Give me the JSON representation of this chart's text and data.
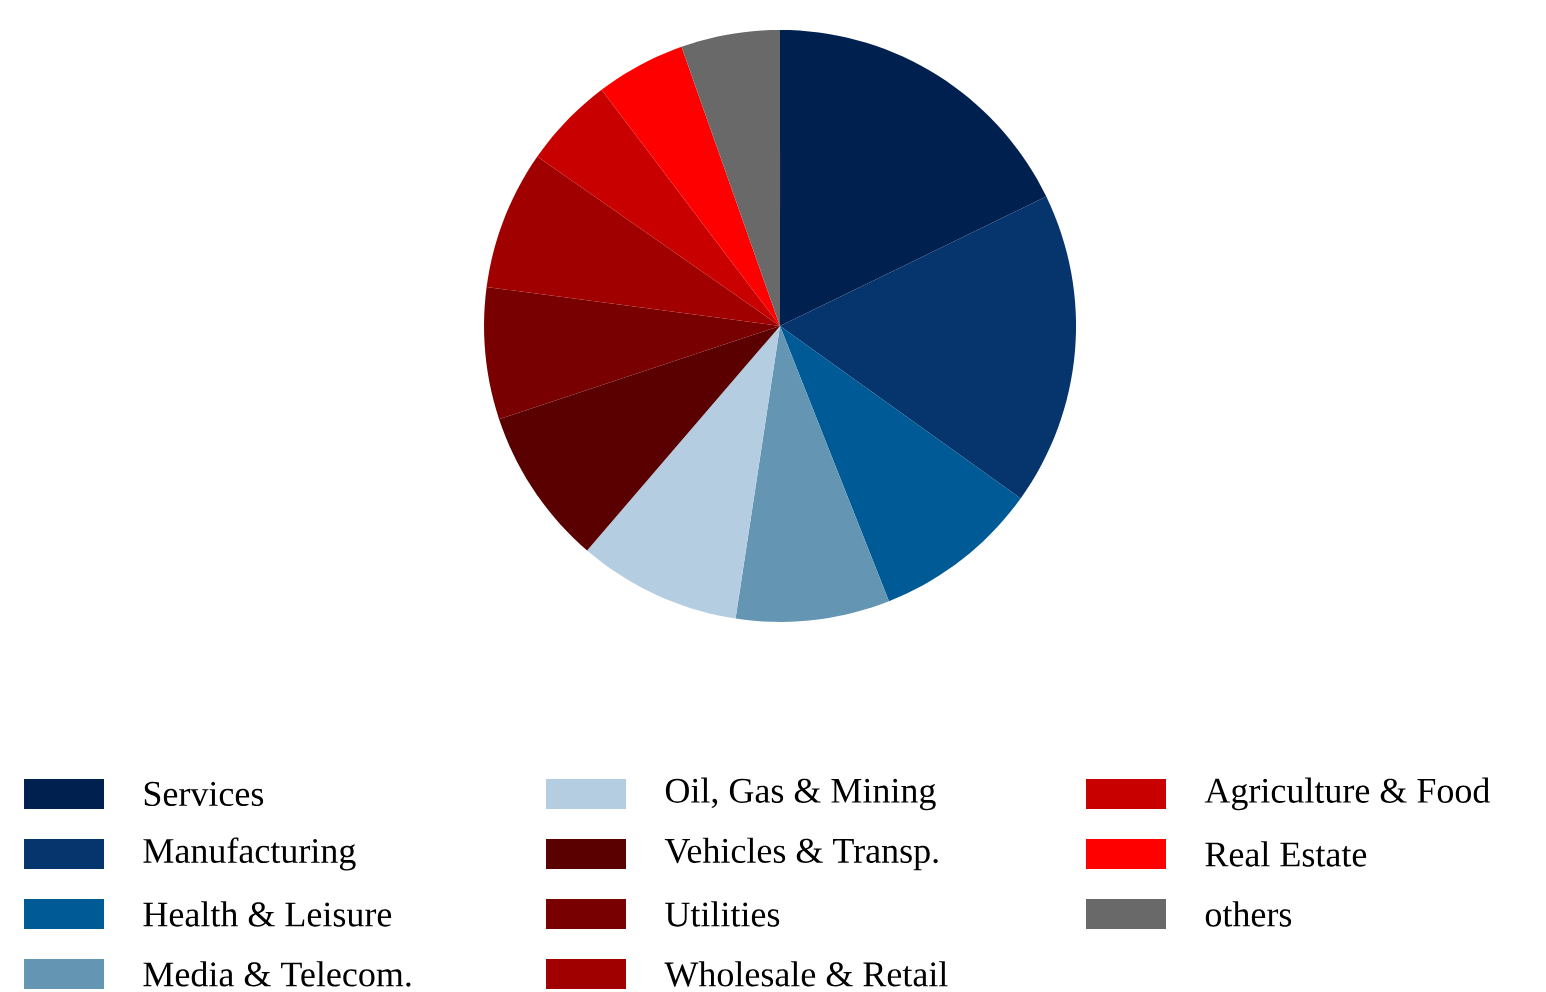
{
  "chart_data": {
    "type": "pie",
    "legend": "bottom",
    "categories": [
      "Services",
      "Manufacturing",
      "Health & Leisure",
      "Media & Telecom.",
      "Oil, Gas & Mining",
      "Vehicles & Transp.",
      "Utilities",
      "Wholesale & Retail",
      "Agriculture & Food",
      "Real Estate",
      "others"
    ],
    "values": [
      17.8,
      17.1,
      9.1,
      8.4,
      8.9,
      8.6,
      7.2,
      7.6,
      5.0,
      4.9,
      5.4
    ],
    "colors": [
      "#002050",
      "#06346c",
      "#005a96",
      "#6496b4",
      "#b4cde1",
      "#5a0000",
      "#780000",
      "#a00000",
      "#c80000",
      "#ff0000",
      "#696969"
    ]
  }
}
